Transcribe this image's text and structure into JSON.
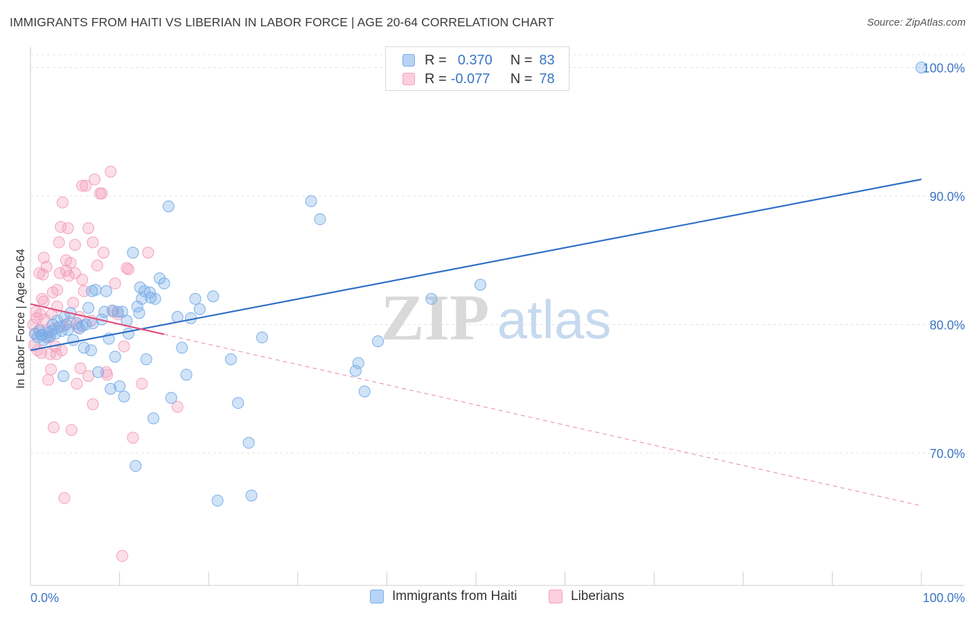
{
  "title": "IMMIGRANTS FROM HAITI VS LIBERIAN IN LABOR FORCE | AGE 20-64 CORRELATION CHART",
  "source": "Source: ZipAtlas.com",
  "watermark": {
    "zip": "ZIP",
    "atlas": "atlas"
  },
  "legend": {
    "rows": [
      {
        "r_label": "R =",
        "r_value": "0.370",
        "n_label": "N =",
        "n_value": "83"
      },
      {
        "r_label": "R =",
        "r_value": "-0.077",
        "n_label": "N =",
        "n_value": "78"
      }
    ]
  },
  "colors": {
    "haiti": "#7aaee8",
    "haiti_line": "#2f6fc6",
    "liberian": "#f4a0bd",
    "liberian_line": "#e0517f",
    "accent_text": "#3a75c4"
  },
  "chart_data": {
    "type": "scatter",
    "title": "IMMIGRANTS FROM HAITI VS LIBERIAN IN LABOR FORCE | AGE 20-64 CORRELATION CHART",
    "xlabel": "",
    "ylabel": "In Labor Force | Age 20-64",
    "xlim": [
      0,
      100
    ],
    "ylim": [
      60,
      100
    ],
    "x_tick_labels": [
      "0.0%",
      "100.0%"
    ],
    "y_ticks": [
      70,
      80,
      90,
      100
    ],
    "y_tick_labels": [
      "70.0%",
      "80.0%",
      "90.0%",
      "100.0%"
    ],
    "grid": true,
    "series": [
      {
        "name": "Immigrants from Haiti",
        "r": 0.37,
        "n": 83,
        "trend": {
          "x0": 0,
          "y0": 78.0,
          "x1": 100,
          "y1": 91.3
        },
        "points": [
          [
            0.5,
            79.3
          ],
          [
            0.8,
            79.0
          ],
          [
            1.0,
            79.5
          ],
          [
            1.3,
            79.2
          ],
          [
            1.5,
            78.8
          ],
          [
            2.0,
            79.4
          ],
          [
            2.2,
            79.1
          ],
          [
            2.5,
            80.0
          ],
          [
            3.0,
            80.3
          ],
          [
            3.2,
            79.8
          ],
          [
            3.5,
            79.5
          ],
          [
            3.8,
            80.6
          ],
          [
            4.0,
            80.0
          ],
          [
            4.5,
            80.9
          ],
          [
            4.8,
            78.8
          ],
          [
            5.2,
            80.1
          ],
          [
            5.5,
            79.7
          ],
          [
            6.0,
            78.2
          ],
          [
            6.2,
            80.0
          ],
          [
            6.5,
            81.3
          ],
          [
            6.8,
            78.0
          ],
          [
            7.0,
            80.1
          ],
          [
            7.3,
            82.7
          ],
          [
            7.6,
            76.3
          ],
          [
            8.0,
            80.4
          ],
          [
            8.3,
            81.0
          ],
          [
            8.5,
            82.6
          ],
          [
            8.8,
            78.9
          ],
          [
            9.0,
            75.0
          ],
          [
            9.5,
            77.5
          ],
          [
            9.8,
            81.0
          ],
          [
            10.0,
            75.2
          ],
          [
            10.3,
            81.0
          ],
          [
            10.5,
            74.4
          ],
          [
            10.8,
            80.3
          ],
          [
            11.0,
            79.3
          ],
          [
            11.5,
            85.6
          ],
          [
            11.8,
            69.0
          ],
          [
            12.0,
            81.4
          ],
          [
            12.3,
            82.9
          ],
          [
            12.5,
            82.0
          ],
          [
            12.8,
            82.6
          ],
          [
            13.0,
            77.3
          ],
          [
            13.4,
            82.5
          ],
          [
            13.8,
            72.7
          ],
          [
            14.0,
            82.0
          ],
          [
            14.5,
            83.6
          ],
          [
            15.0,
            83.2
          ],
          [
            15.5,
            89.2
          ],
          [
            15.8,
            74.3
          ],
          [
            16.5,
            80.6
          ],
          [
            17.0,
            78.2
          ],
          [
            17.5,
            76.1
          ],
          [
            18.5,
            82.0
          ],
          [
            18.0,
            80.5
          ],
          [
            19.0,
            81.2
          ],
          [
            20.5,
            82.2
          ],
          [
            21.0,
            66.3
          ],
          [
            22.5,
            77.3
          ],
          [
            23.3,
            73.9
          ],
          [
            24.5,
            70.8
          ],
          [
            24.8,
            66.7
          ],
          [
            26.0,
            79.0
          ],
          [
            31.5,
            89.6
          ],
          [
            32.5,
            88.2
          ],
          [
            36.8,
            77.0
          ],
          [
            36.5,
            76.4
          ],
          [
            37.5,
            74.8
          ],
          [
            39.0,
            78.7
          ],
          [
            45.0,
            82.0
          ],
          [
            50.5,
            83.1
          ],
          [
            100.0,
            100.0
          ],
          [
            1.8,
            79.0
          ],
          [
            2.8,
            79.3
          ],
          [
            3.7,
            76.0
          ],
          [
            4.2,
            79.6
          ],
          [
            5.8,
            79.9
          ],
          [
            9.2,
            81.1
          ],
          [
            12.2,
            80.9
          ],
          [
            13.5,
            82.1
          ],
          [
            1.2,
            79.2
          ],
          [
            2.4,
            79.5
          ],
          [
            6.9,
            82.6
          ]
        ]
      },
      {
        "name": "Liberians",
        "r": -0.077,
        "n": 78,
        "trend": {
          "x0": 0,
          "y0": 81.6,
          "x1": 100,
          "y1": 65.9,
          "solid_until": 15
        },
        "points": [
          [
            0.3,
            80.0
          ],
          [
            0.5,
            79.3
          ],
          [
            0.6,
            81.0
          ],
          [
            0.7,
            80.5
          ],
          [
            0.8,
            78.0
          ],
          [
            1.0,
            79.6
          ],
          [
            1.0,
            84.0
          ],
          [
            1.2,
            77.8
          ],
          [
            1.3,
            82.0
          ],
          [
            1.5,
            81.8
          ],
          [
            1.5,
            85.2
          ],
          [
            1.6,
            80.4
          ],
          [
            1.8,
            79.5
          ],
          [
            1.8,
            84.5
          ],
          [
            2.0,
            79.0
          ],
          [
            2.0,
            75.7
          ],
          [
            2.2,
            77.7
          ],
          [
            2.3,
            76.5
          ],
          [
            2.4,
            80.8
          ],
          [
            2.5,
            82.5
          ],
          [
            2.6,
            72.0
          ],
          [
            2.7,
            79.7
          ],
          [
            2.8,
            78.3
          ],
          [
            3.0,
            81.4
          ],
          [
            3.0,
            82.7
          ],
          [
            3.2,
            86.4
          ],
          [
            3.3,
            84.0
          ],
          [
            3.4,
            87.6
          ],
          [
            3.5,
            78.0
          ],
          [
            3.6,
            89.5
          ],
          [
            3.7,
            79.9
          ],
          [
            3.8,
            66.5
          ],
          [
            4.0,
            85.0
          ],
          [
            4.0,
            84.2
          ],
          [
            4.2,
            87.5
          ],
          [
            4.3,
            83.8
          ],
          [
            4.4,
            80.2
          ],
          [
            4.5,
            84.8
          ],
          [
            4.6,
            71.8
          ],
          [
            4.8,
            81.7
          ],
          [
            5.0,
            84.0
          ],
          [
            5.0,
            86.2
          ],
          [
            5.2,
            75.4
          ],
          [
            5.3,
            79.8
          ],
          [
            5.5,
            80.6
          ],
          [
            5.6,
            76.6
          ],
          [
            5.8,
            83.5
          ],
          [
            5.8,
            90.8
          ],
          [
            6.0,
            82.6
          ],
          [
            6.2,
            90.8
          ],
          [
            6.5,
            87.5
          ],
          [
            6.5,
            76.0
          ],
          [
            6.8,
            80.3
          ],
          [
            7.0,
            86.4
          ],
          [
            7.0,
            73.8
          ],
          [
            7.2,
            91.3
          ],
          [
            7.5,
            84.6
          ],
          [
            7.8,
            90.2
          ],
          [
            8.0,
            90.2
          ],
          [
            8.2,
            85.6
          ],
          [
            8.5,
            76.3
          ],
          [
            8.6,
            76.1
          ],
          [
            9.0,
            91.9
          ],
          [
            9.3,
            81.0
          ],
          [
            9.5,
            83.2
          ],
          [
            9.8,
            80.8
          ],
          [
            10.3,
            62.0
          ],
          [
            10.5,
            78.3
          ],
          [
            10.8,
            84.4
          ],
          [
            11.0,
            84.3
          ],
          [
            11.5,
            71.2
          ],
          [
            12.5,
            75.4
          ],
          [
            13.2,
            85.6
          ],
          [
            16.5,
            73.6
          ],
          [
            1.4,
            83.9
          ],
          [
            2.9,
            77.7
          ],
          [
            0.4,
            78.4
          ],
          [
            1.1,
            80.8
          ]
        ]
      }
    ]
  },
  "axis": {
    "x_left": "0.0%",
    "x_right": "100.0%",
    "y_labels": [
      "100.0%",
      "90.0%",
      "80.0%",
      "70.0%"
    ],
    "ylabel": "In Labor Force | Age 20-64"
  },
  "bottom_legend": {
    "haiti": "Immigrants from Haiti",
    "liberian": "Liberians"
  }
}
